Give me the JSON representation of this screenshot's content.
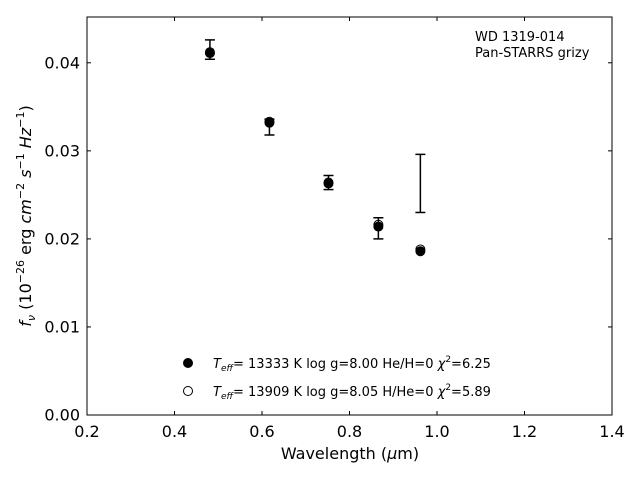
{
  "chart_data": {
    "type": "scatter",
    "annotation": [
      "WD 1319-014",
      "Pan-STARRS grizy"
    ],
    "xlabel": "Wavelength (μm)",
    "ylabel": "f_ν (10^−26 erg cm^−2 s^−1 Hz^−1)",
    "xlim": [
      0.2,
      1.4
    ],
    "ylim": [
      0.0,
      0.0452
    ],
    "x_ticks": [
      0.2,
      0.4,
      0.6,
      0.8,
      1.0,
      1.2,
      1.4
    ],
    "x_tick_labels": [
      "0.2",
      "0.4",
      "0.6",
      "0.8",
      "1.0",
      "1.2",
      "1.4"
    ],
    "y_ticks": [
      0.0,
      0.01,
      0.02,
      0.03,
      0.04
    ],
    "y_tick_labels": [
      "0.00",
      "0.01",
      "0.02",
      "0.03",
      "0.04"
    ],
    "grid": false,
    "legend_position": "bottom-center",
    "observed": {
      "x": [
        0.481,
        0.617,
        0.752,
        0.866,
        0.962
      ],
      "y": [
        0.0415,
        0.0327,
        0.0264,
        0.0212,
        0.0263
      ],
      "y_err": [
        0.0011,
        0.0009,
        0.0008,
        0.0012,
        0.0033
      ]
    },
    "series": [
      {
        "name": "T_eff= 13333 K  log g=8.00  He/H=0  χ²=6.25",
        "marker": "filled-circle",
        "x": [
          0.481,
          0.617,
          0.752,
          0.866,
          0.962
        ],
        "y": [
          0.0411,
          0.0332,
          0.0263,
          0.0214,
          0.0186
        ]
      },
      {
        "name": "T_eff= 13909 K  log g=8.05  H/He=0  χ²=5.89",
        "marker": "open-circle",
        "x": [
          0.481,
          0.617,
          0.752,
          0.866,
          0.962
        ],
        "y": [
          0.0412,
          0.0333,
          0.0264,
          0.0216,
          0.0188
        ]
      }
    ],
    "legend": [
      {
        "marker": "filled-circle",
        "teff": "13333 K",
        "logg": "log g=8.00",
        "comp": "He/H=0",
        "chi2": "=6.25"
      },
      {
        "marker": "open-circle",
        "teff": "13909 K",
        "logg": "log g=8.05",
        "comp": "H/He=0",
        "chi2": "=5.89"
      }
    ],
    "colors": {
      "markers": "#000000",
      "axes": "#000000",
      "background": "#ffffff"
    }
  }
}
